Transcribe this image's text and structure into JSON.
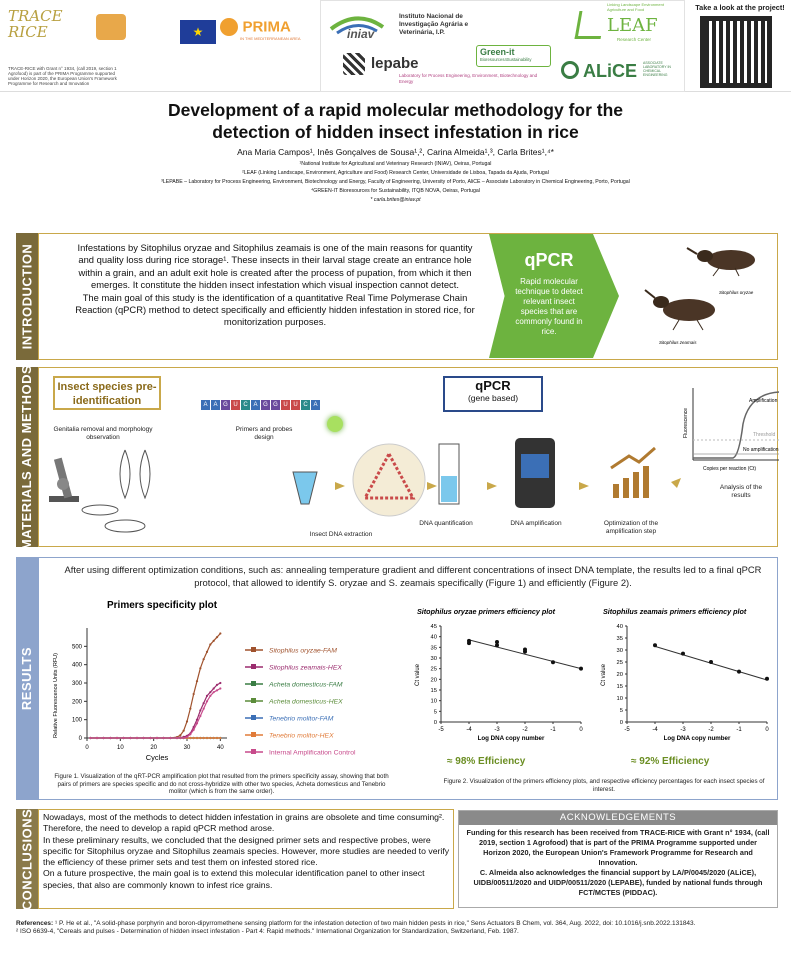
{
  "header": {
    "trace_rice_logo": "TRACE RICE",
    "trace_rice_note": "TRACE-RICE with Grant n° 1934, (call 2019, section 1 Agrofood) is part of the PRIMA Programme supported under Horizon 2020, the European Union's Framework Programme for Research and Innovation",
    "prima_logo": "PRIMA",
    "prima_sub": "IN THE MEDITERRANEAN AREA",
    "iniav_name": "Instituto Nacional de Investigação Agrária e Veterinária, I.P.",
    "iniav_logo": "iniav",
    "lepabe_logo": "lepabe",
    "lepabe_sub": "Laboratory for Process Engineering, Environment, Biotechnology and Energy",
    "greenit_logo": "Green-it",
    "greenit_sub": "Bioresources4Sustainability",
    "leaf_logo": "LEAF",
    "leaf_sub": "Linking Landscape Environment Agriculture and Food",
    "leaf_center": "Research Center",
    "alice_logo": "ALiCE",
    "alice_sub": "ASSOCIATE LABORATORY IN CHEMICAL ENGINEERING",
    "qr_caption": "Take a look at the project!"
  },
  "title": {
    "line1": "Development of a rapid molecular methodology for the",
    "line2": "detection of hidden insect infestation in rice",
    "authors": "Ana Maria Campos¹, Inês Gonçalves de Sousa¹,², Carina Almeida¹,³, Carla Brites¹,⁴*",
    "affil1": "¹National Institute for Agricultural and Veterinary Research (INIAV), Oeiras, Portugal",
    "affil2": "²LEAF (Linking Landscape, Environment, Agriculture and Food) Research Center, Universidade de Lisboa, Tapada da Ajuda, Portugal",
    "affil3": "³LEPABE – Laboratory for Process Engineering, Environment, Biotechnology and Energy, Faculty of Engineering, University of Porto, AliCE – Associate Laboratory in Chemical Engineering, Porto, Portugal",
    "affil4": "⁴GREEN-IT Bioresources for Sustainability, ITQB NOVA, Oeiras, Portugal",
    "email": "* carla.brites@iniav.pt"
  },
  "introduction": {
    "label": "INTRODUCTION",
    "p1": "Infestations by Sitophilus oryzae and Sitophilus zeamais is one of the main reasons for quantity and quality loss during rice storage¹. These insects in their larval stage create an entrance hole within a grain, and an adult exit hole is created after the process of pupation, from which it then emerges. It constitute the hidden insect infestation which visual inspection cannot detect.",
    "p2": "The main goal of this study is the identification of a quantitative Real Time Polymerase Chain Reaction (qPCR) method to detect specifically and efficiently hidden infestation in stored rice, for monitorization purposes.",
    "qpcr_title": "qPCR",
    "qpcr_text": "Rapid molecular technique to detect relevant insect species that are commonly found in rice.",
    "insect1_caption": "Sitophilus oryzae",
    "insect2_caption": "Sitophilus zeamais"
  },
  "methods": {
    "label": "MATERIALS AND METHODS",
    "species_title": "Insect species pre-identification",
    "genitalia": "Genitalia removal and morphology observation",
    "dna_seq": "AAGUCAGGUUCA",
    "primers": "Primers and probes design",
    "qpcr_box_title": "qPCR",
    "qpcr_box_sub": "(gene based)",
    "dna_extraction": "Insect DNA extraction",
    "dna_quant": "DNA quantification",
    "dna_amp": "DNA amplification",
    "optimization": "Optimization of the amplification step",
    "analysis": "Analysis of the results",
    "amp_label": "Amplification",
    "threshold_label": "Threshold",
    "no_amp_label": "No amplification",
    "fluor_label": "Fluorescence",
    "cycles_label": "Copies per reaction (Ct)"
  },
  "results": {
    "label": "RESULTS",
    "intro": "After using different optimization conditions, such as: annealing temperature gradient and different concentrations of insect DNA template, the results led to a final qPCR protocol, that allowed to identify S. oryzae and S. zeamais specifically (Figure 1) and efficiently (Figure 2).",
    "fig1_caption": "Figure 1. Visualization of the qRT-PCR amplification plot that resulted from the primers specificity assay, showing that both pairs of primers are species specific and do not cross-hybridize with other two species, Acheta domesticus and Tenebrio molitor (which is from the same order).",
    "fig2_caption": "Figure 2. Visualization of the primers efficiency plots, and respective efficiency percentages for each insect species of interest.",
    "eff1": "≈ 98% Efficiency",
    "eff2": "≈ 92% Efficiency"
  },
  "conclusions": {
    "label": "CONCLUSIONS",
    "p1": "Nowadays, most of the methods to detect hidden infestation in grains are obsolete and time consuming². Therefore, the need to develop a rapid qPCR method arose.",
    "p2": "In these preliminary results, we concluded that the designed primer sets and respective probes, were specific for Sitophilus oryzae and Sitophilus zeamais species. However, more studies are needed to verify the efficiency of these primer sets and test them on infested stored rice.",
    "p3": "On a future prospective, the main goal is to extend this molecular identification panel to other insect species, that also are commonly known to infest rice grains."
  },
  "acknowledgements": {
    "title": "ACKNOWLEDGEMENTS",
    "p1": "Funding for this research has been received from TRACE-RICE with Grant n° 1934, (call 2019, section 1 Agrofood) that is part of the PRIMA Programme supported under Horizon 2020, the European Union's Framework Programme for Research and Innovation.",
    "p2": "C. Almeida also acknowledges the financial support by LA/P/0045/2020 (ALiCE), UIDB/00511/2020 and UIDP/00511/2020 (LEPABE), funded by national funds through FCT/MCTES (PIDDAC)."
  },
  "references": {
    "title": "References:",
    "r1": "¹ P. He et al., \"A solid-phase porphyrin and boron-dipyrromethene sensing platform for the infestation detection of two main hidden pests in rice,\" Sens Actuators B Chem, vol. 364, Aug. 2022, doi: 10.1016/j.snb.2022.131843.",
    "r2": "² ISO 6639-4, \"Cereals and pulses - Determination of hidden insect infestation - Part 4: Rapid methods.\" International Organization for Standardization, Switzerland, Feb. 1987."
  },
  "chart_data": [
    {
      "type": "line",
      "title": "Primers specificity plot",
      "xlabel": "Cycles",
      "ylabel": "Relative Fluorescence Units (RFU)",
      "xlim": [
        0,
        42
      ],
      "ylim": [
        0,
        600
      ],
      "xticks": [
        0,
        10,
        20,
        30,
        40
      ],
      "yticks": [
        0,
        100,
        200,
        300,
        400,
        500
      ],
      "x": [
        1,
        3,
        5,
        7,
        9,
        11,
        13,
        15,
        17,
        19,
        21,
        23,
        25,
        27,
        28,
        29,
        30,
        31,
        32,
        33,
        34,
        35,
        36,
        37,
        38,
        39,
        40
      ],
      "series": [
        {
          "name": "Sitophilus oryzae-FAM",
          "color": "#a0522d",
          "values": [
            0,
            0,
            0,
            0,
            0,
            0,
            0,
            0,
            0,
            0,
            0,
            0,
            0,
            5,
            15,
            40,
            90,
            160,
            240,
            310,
            380,
            430,
            470,
            510,
            530,
            550,
            570
          ]
        },
        {
          "name": "Sitophilus zeamais-HEX",
          "color": "#9b2c6e",
          "values": [
            0,
            0,
            0,
            0,
            0,
            0,
            0,
            0,
            0,
            0,
            0,
            0,
            0,
            0,
            2,
            6,
            12,
            25,
            60,
            100,
            150,
            190,
            230,
            250,
            270,
            290,
            300
          ]
        },
        {
          "name": "Acheta domesticus-FAM",
          "color": "#3a7d44",
          "values": [
            0,
            0,
            0,
            0,
            0,
            0,
            0,
            0,
            0,
            0,
            0,
            0,
            0,
            0,
            0,
            0,
            0,
            0,
            0,
            0,
            0,
            0,
            0,
            0,
            0,
            0,
            0
          ]
        },
        {
          "name": "Acheta domesticus-HEX",
          "color": "#5b8c3a",
          "values": [
            0,
            0,
            0,
            0,
            0,
            0,
            0,
            0,
            0,
            0,
            0,
            0,
            0,
            0,
            0,
            0,
            0,
            0,
            0,
            0,
            0,
            0,
            0,
            0,
            0,
            0,
            0
          ]
        },
        {
          "name": "Tenebrio molitor-FAM",
          "color": "#3b6fb6",
          "values": [
            0,
            0,
            0,
            0,
            0,
            0,
            0,
            0,
            0,
            0,
            0,
            0,
            0,
            0,
            0,
            0,
            0,
            0,
            0,
            0,
            0,
            0,
            0,
            0,
            0,
            0,
            0
          ]
        },
        {
          "name": "Tenebrio molitor-HEX",
          "color": "#e07b39",
          "values": [
            0,
            0,
            0,
            0,
            0,
            0,
            0,
            0,
            0,
            0,
            0,
            0,
            0,
            0,
            0,
            0,
            0,
            0,
            0,
            0,
            0,
            0,
            0,
            0,
            0,
            0,
            0
          ]
        },
        {
          "name": "Internal Amplification Control",
          "color": "#c74a8b",
          "values": [
            0,
            0,
            0,
            0,
            0,
            0,
            0,
            0,
            0,
            0,
            0,
            0,
            0,
            0,
            0,
            0,
            5,
            20,
            45,
            80,
            120,
            160,
            200,
            230,
            250,
            260,
            270
          ]
        }
      ]
    },
    {
      "type": "scatter",
      "title": "Sitophilus oryzae primers efficiency plot",
      "xlabel": "Log DNA copy number",
      "ylabel": "Ct value",
      "xlim": [
        -5,
        0
      ],
      "ylim": [
        0,
        45
      ],
      "xticks": [
        -5,
        -4,
        -3,
        -2,
        -1,
        0
      ],
      "yticks": [
        0,
        5,
        10,
        15,
        20,
        25,
        30,
        35,
        40,
        45
      ],
      "points": [
        [
          -4,
          37
        ],
        [
          -4,
          38
        ],
        [
          -3,
          36
        ],
        [
          -3,
          37.5
        ],
        [
          -2,
          33
        ],
        [
          -2,
          34
        ],
        [
          -1,
          28
        ],
        [
          0,
          25
        ]
      ],
      "trend": [
        [
          -4,
          38.5
        ],
        [
          0,
          25
        ]
      ]
    },
    {
      "type": "scatter",
      "title": "Sitophilus zeamais primers efficiency plot",
      "xlabel": "Log DNA copy number",
      "ylabel": "Ct value",
      "xlim": [
        -5,
        0
      ],
      "ylim": [
        0,
        40
      ],
      "xticks": [
        -5,
        -4,
        -3,
        -2,
        -1,
        0
      ],
      "yticks": [
        0,
        5,
        10,
        15,
        20,
        25,
        30,
        35,
        40
      ],
      "points": [
        [
          -4,
          32
        ],
        [
          -3,
          28.5
        ],
        [
          -2,
          25
        ],
        [
          -1,
          21
        ],
        [
          0,
          18
        ]
      ],
      "trend": [
        [
          -4,
          31.5
        ],
        [
          0,
          17.5
        ]
      ]
    }
  ]
}
